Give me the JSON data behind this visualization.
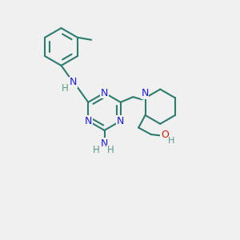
{
  "bg_color": "#f0f0f0",
  "bond_color": "#2d7d6e",
  "bond_width": 1.5,
  "nitrogen_color": "#1a1aee",
  "oxygen_color": "#cc2200",
  "hydrogen_color": "#5a9a8a",
  "label_fontsize": 8.5,
  "figsize": [
    3.0,
    3.0
  ],
  "dpi": 100,
  "xlim": [
    0,
    10
  ],
  "ylim": [
    0,
    10
  ]
}
